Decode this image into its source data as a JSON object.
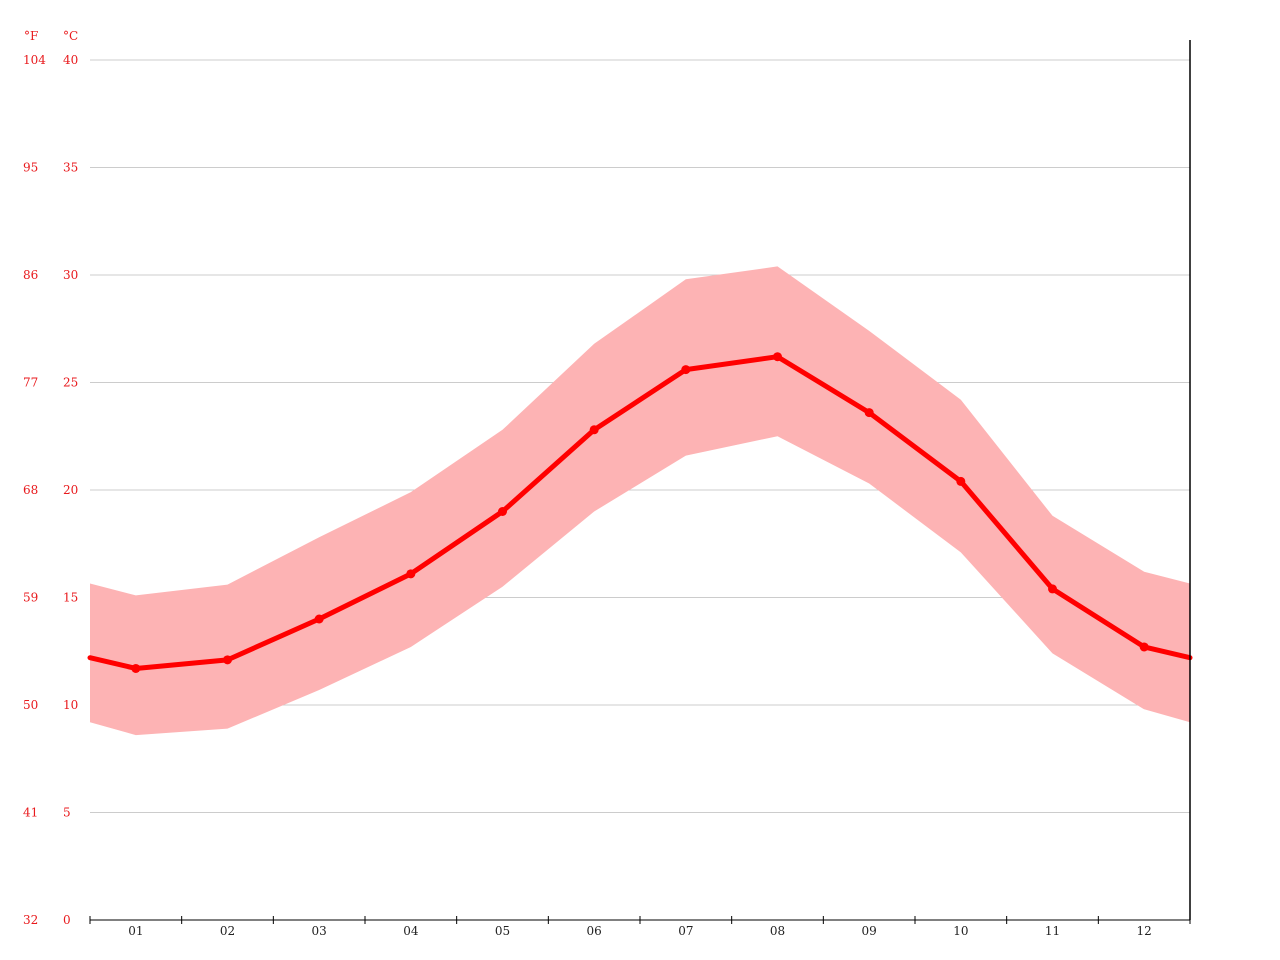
{
  "chart_data": {
    "type": "line",
    "title": "",
    "xlabel": "",
    "ylabel": "",
    "units": {
      "fahrenheit": "°F",
      "celsius": "°C"
    },
    "categories": [
      "01",
      "02",
      "03",
      "04",
      "05",
      "06",
      "07",
      "08",
      "09",
      "10",
      "11",
      "12"
    ],
    "ylim": [
      0,
      40
    ],
    "celsius_ticks": [
      "0",
      "5",
      "10",
      "15",
      "20",
      "25",
      "30",
      "35",
      "40"
    ],
    "fahrenheit_ticks": [
      "32",
      "41",
      "50",
      "59",
      "68",
      "77",
      "86",
      "95",
      "104"
    ],
    "grid": true,
    "series": [
      {
        "role": "mean",
        "values": [
          11.7,
          12.1,
          14.0,
          16.1,
          19.0,
          22.8,
          25.6,
          26.2,
          23.6,
          20.4,
          15.4,
          12.7
        ]
      },
      {
        "role": "max",
        "values": [
          15.1,
          15.6,
          17.8,
          19.9,
          22.8,
          26.8,
          29.8,
          30.4,
          27.4,
          24.2,
          18.8,
          16.2
        ]
      },
      {
        "role": "min",
        "values": [
          8.6,
          8.9,
          10.7,
          12.7,
          15.5,
          19.0,
          21.6,
          22.5,
          20.3,
          17.1,
          12.4,
          9.8
        ]
      }
    ],
    "colors": {
      "line": "#ff0000",
      "band": "#fdb3b4",
      "grid": "#cccccc",
      "axis_text": "#e8191c"
    }
  }
}
